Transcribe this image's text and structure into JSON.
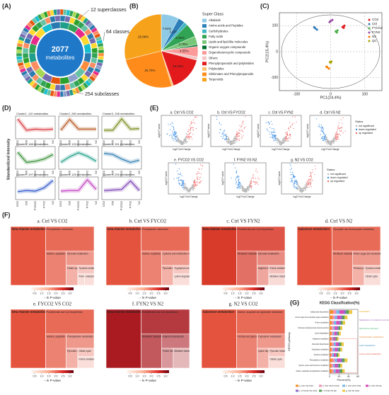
{
  "chart_data": [
    {
      "type": "sunburst",
      "label": "(A)",
      "center": [
        "2077",
        "metabolites"
      ],
      "annotations": [
        "12 superclasses",
        "64 classes",
        "254 subclasses"
      ]
    },
    {
      "type": "pie",
      "label": "(B)",
      "legend_title": "Super Class",
      "categories": [
        "Alkaloids",
        "Amino acids and Peptides",
        "Carbohydrates",
        "Fatty acids",
        "Lipids and lipid-like molecules",
        "Organic oxygen compounds",
        "Organoheterocyclic compounds",
        "Others",
        "Phenylpropanoids and polyketides",
        "Polyketides",
        "Shikimates and Phenylpropanoids",
        "Terpenoids"
      ],
      "values": [
        7.84,
        3.03,
        1.52,
        6.06,
        3.79,
        0.76,
        4.55,
        1.52,
        15.53,
        0.76,
        25.76,
        28.88
      ],
      "value_labels": [
        "7.84%",
        "3.03%",
        "1.52%",
        "6.06%",
        "3.79%",
        "0.76%",
        "4.55%",
        "1.52%",
        "15.53%",
        "0.76%",
        "25.76%",
        "28.88%"
      ],
      "colors": [
        "#8ecae6",
        "#2c7fb8",
        "#41b6c4",
        "#31a354",
        "#78c679",
        "#006d2c",
        "#fb9a99",
        "#f4c6c6",
        "#e31a1c",
        "#fdbf6f",
        "#ff8c1a",
        "#f7a21b"
      ]
    },
    {
      "type": "scatter",
      "label": "(C)",
      "xlabel": "PC1(24.4%)",
      "ylabel": "PC2(15.4%)",
      "xlim": [
        -150,
        150
      ],
      "ylim": [
        -150,
        150
      ],
      "xticks": [
        -100,
        0,
        100
      ],
      "yticks": [
        -100,
        0,
        100
      ],
      "series": [
        {
          "name": "CO2",
          "color": "#e41a1c",
          "x": [
            35,
            40,
            38
          ],
          "y": [
            95,
            100,
            92
          ]
        },
        {
          "name": "Ctrl",
          "color": "#377eb8",
          "x": [
            -45,
            -40,
            -48
          ],
          "y": [
            90,
            85,
            94
          ]
        },
        {
          "name": "FYCO2",
          "color": "#4daf4a",
          "x": [
            15,
            20,
            18
          ],
          "y": [
            78,
            82,
            74
          ]
        },
        {
          "name": "FYN2",
          "color": "#984ea3",
          "x": [
            0,
            5,
            -3
          ],
          "y": [
            118,
            122,
            114
          ]
        },
        {
          "name": "N2",
          "color": "#ff7f00",
          "x": [
            -10,
            -5,
            -12
          ],
          "y": [
            -60,
            -65,
            -58
          ]
        },
        {
          "name": "QC",
          "color": "#a6a600",
          "x": [
            -2,
            0,
            2
          ],
          "y": [
            -40,
            -42,
            -38
          ]
        }
      ]
    },
    {
      "type": "line",
      "label": "(D)",
      "ylabel": "Standardized Intensity",
      "categories": [
        "CO2",
        "Ctrl",
        "FYCO2",
        "FYN2",
        "N2"
      ],
      "ylim": [
        -2,
        2
      ],
      "panels": [
        {
          "title": "Cluster1, 110 metabolites",
          "color": "#d9373a",
          "values": [
            1.5,
            -0.5,
            -0.3,
            -0.4,
            -0.3
          ]
        },
        {
          "title": "Cluster2, 280 metabolites",
          "color": "#b3541e",
          "values": [
            -0.5,
            1.4,
            -0.3,
            -0.3,
            -0.3
          ]
        },
        {
          "title": "Cluster3, 198 metabolites",
          "color": "#7a8a1a",
          "values": [
            -0.5,
            -0.5,
            1.5,
            -0.3,
            -0.2
          ]
        },
        {
          "title": "Cluster4, 186 metabolites",
          "color": "#2e8b2e",
          "values": [
            1.0,
            -0.8,
            -0.6,
            -0.2,
            0.6
          ]
        },
        {
          "title": "Cluster5, 133 metabolites",
          "color": "#1f9e89",
          "values": [
            -0.8,
            0.2,
            0.9,
            0.3,
            -0.6
          ]
        },
        {
          "title": "Cluster6, 151 metabolites",
          "color": "#2a7ab0",
          "values": [
            0.8,
            0.6,
            -0.2,
            -0.8,
            -0.4
          ]
        },
        {
          "title": "Cluster7, 197 metabolites",
          "color": "#2952c9",
          "values": [
            -0.6,
            -0.4,
            -0.5,
            0.1,
            1.4
          ]
        },
        {
          "title": "Cluster8, 126 metabolites",
          "color": "#c040c0",
          "values": [
            -0.5,
            -0.4,
            -0.4,
            1.5,
            -0.2
          ]
        },
        {
          "title": "Cluster9, 205 metabolites",
          "color": "#7b3fb5",
          "values": [
            -0.4,
            -0.3,
            -0.2,
            1.3,
            -0.4
          ]
        }
      ]
    },
    {
      "type": "volcano",
      "label": "(E)",
      "xlabel": "log2 Fold Change",
      "ylabel": "-log10 P-value",
      "plots": [
        "a. Ctrl VS CO2",
        "b. Ctrl VS FYCO2",
        "c. Ctrl VS FYN2",
        "d. Ctrl VS N2",
        "e. FYCO2 VS CO2",
        "f. FYN2 VS N2",
        "g. N2 VS CO2"
      ],
      "legend_title": "Status",
      "legend": [
        "not significant",
        "down regulated",
        "up regulated"
      ],
      "colors": [
        "#b8b8b8",
        "#3a8ee6",
        "#f07070"
      ]
    },
    {
      "type": "treemap",
      "label": "(F)",
      "xlabel": "− ln P-value",
      "colorbar_ticks": [
        0.5,
        {
          "value": 1,
          "label": "1.0"
        },
        1.5,
        {
          "value": 2,
          "label": "2.0"
        },
        2.5,
        {
          "value": 3,
          "label": "3.0"
        }
      ],
      "colorbar_lim": [
        0.25,
        3.25
      ],
      "plots": [
        {
          "title": "a. Ctrl VS CO2",
          "color": "#e34a33",
          "cells": [
            "beta-Alanine metabolism",
            "Phenylalanine metabolism",
            "Alanine, aspartate and glutamate metabolism",
            "Pyruvate metabolism",
            "Citrate cycle",
            "Tyrosine metabolism",
            "Purine metabolism",
            "Galactose metabolism"
          ]
        },
        {
          "title": "b. Ctrl VS FYCO2",
          "color": "#e34a33",
          "cells": [
            "beta-Alanine metabolism",
            "Phenylalanine metabolism",
            "Alanine, aspartate and glutamate metabolism",
            "Cysteine and methionine metabolism",
            "Pyruvate metabolism",
            "Tryptophan metabolism",
            "Lysine degradation"
          ]
        },
        {
          "title": "c. Ctrl VS FYN2",
          "color": "#d7301f",
          "cells": [
            "beta-Alanine metabolism",
            "Pantothenate and CoA biosynthesis",
            "Riboflavin metabolism",
            "Pyruvate metabolism",
            "Arginine biosynthesis",
            "Purine metabolism",
            "Methane metabolism"
          ]
        },
        {
          "title": "d. Ctrl VS N2",
          "color": "#e34a33",
          "cells": [
            "Galactose metabolism",
            "Glyoxylate and dicarboxylate metabolism",
            "Riboflavin metabolism",
            "Amino sugar and nucleotide sugar metabolism",
            "Pentose phosphate pathway",
            "Tyrosine metabolism",
            "Citrate cycle"
          ]
        },
        {
          "title": "e. FYCO2 VS CO2",
          "color": "#e34a33",
          "cells": [
            "beta-Alanine metabolism",
            "Pantothenate and CoA biosynthesis",
            "Alanine, aspartate and glutamate metabolism",
            "Phenylalanine metabolism",
            "Pyruvate metabolism",
            "Citrate cycle",
            "Purine metabolism"
          ]
        },
        {
          "title": "f. FYN2 VS N2",
          "color": "#a50f15",
          "cells": [
            "beta-Alanine metabolism",
            "Pantothenate and CoA biosynthesis",
            "Riboflavin metabolism",
            "Arginine biosynthesis",
            "Purine metabolism",
            "Methane metabolism"
          ]
        },
        {
          "title": "g. N2 VS CO2",
          "color": "#e34a33",
          "cells": [
            "Galactose metabolism",
            "Alanine, aspartate and glutamate metabolism",
            "Pentose and glucuronate interconversions",
            "Tryptophan metabolism",
            "Lysine degradation",
            "Pyruvate metabolism",
            "Citrate cycle"
          ]
        }
      ]
    },
    {
      "type": "bar",
      "label": "(G)",
      "title": "KEGG Classification(%)",
      "xlabel": "Percent(%)",
      "ylabel": "KEGG pathway",
      "xlim": [
        0,
        60
      ],
      "xticks": [
        0,
        20,
        40,
        60
      ],
      "categories": [
        "Isoflavonoid biosynthesis",
        "Amino sugar and nucleotide sugar metabolism",
        "Purine metabolism",
        "Pentose and glucuronate interconversions",
        "Lysine degradation",
        "Galactose metabolism",
        "Flavonoid biosynthesis",
        "Tryptophan metabolism",
        "Tyrosine metabolism",
        "Phenylalanine metabolism",
        "Glycine, serine and threonine metabolism",
        "Alanine, aspartate and glutamate metabolism"
      ],
      "series": [
        {
          "name": "a. Ctrl VS CO2",
          "color": "#f28e2b",
          "values": [
            8,
            6,
            5,
            4,
            4,
            3,
            5,
            4,
            3,
            6,
            4,
            5
          ]
        },
        {
          "name": "b. Ctrl VS FYCO2",
          "color": "#f48fb1",
          "values": [
            6,
            5,
            4,
            4,
            3,
            3,
            4,
            3,
            3,
            5,
            4,
            4
          ]
        },
        {
          "name": "c. Ctrl VS FYN2",
          "color": "#76b7e5",
          "values": [
            7,
            5,
            5,
            3,
            3,
            2,
            4,
            4,
            3,
            5,
            3,
            4
          ]
        },
        {
          "name": "d. Ctrl VS N2",
          "color": "#d64bb5",
          "values": [
            9,
            7,
            6,
            5,
            4,
            3,
            5,
            5,
            4,
            7,
            5,
            6
          ]
        },
        {
          "name": "e. FYCO2 VS CO2",
          "color": "#8e6bc9",
          "values": [
            5,
            4,
            4,
            3,
            3,
            2,
            3,
            3,
            2,
            4,
            3,
            3
          ]
        },
        {
          "name": "f. FYN2 VS N2",
          "color": "#59a14f",
          "values": [
            6,
            5,
            4,
            4,
            3,
            3,
            4,
            4,
            3,
            5,
            4,
            5
          ]
        },
        {
          "name": "g. N2 VS CO2",
          "color": "#edc948",
          "values": [
            7,
            6,
            5,
            4,
            4,
            3,
            5,
            4,
            3,
            6,
            4,
            5
          ]
        }
      ],
      "annotations": [
        {
          "text": "Translation",
          "color": "#e6a100"
        },
        {
          "text": "Metabolism of cofactors and vitamins",
          "color": "#9b59b6"
        },
        {
          "text": "Membrane transport",
          "color": "#3cb371"
        },
        {
          "text": "Carbohydrate metabolism",
          "color": "#e67e22"
        },
        {
          "text": "Lipid metabolism",
          "color": "#2e86c1"
        },
        {
          "text": "Amino acid metabolism",
          "color": "#e74c3c"
        }
      ]
    }
  ]
}
